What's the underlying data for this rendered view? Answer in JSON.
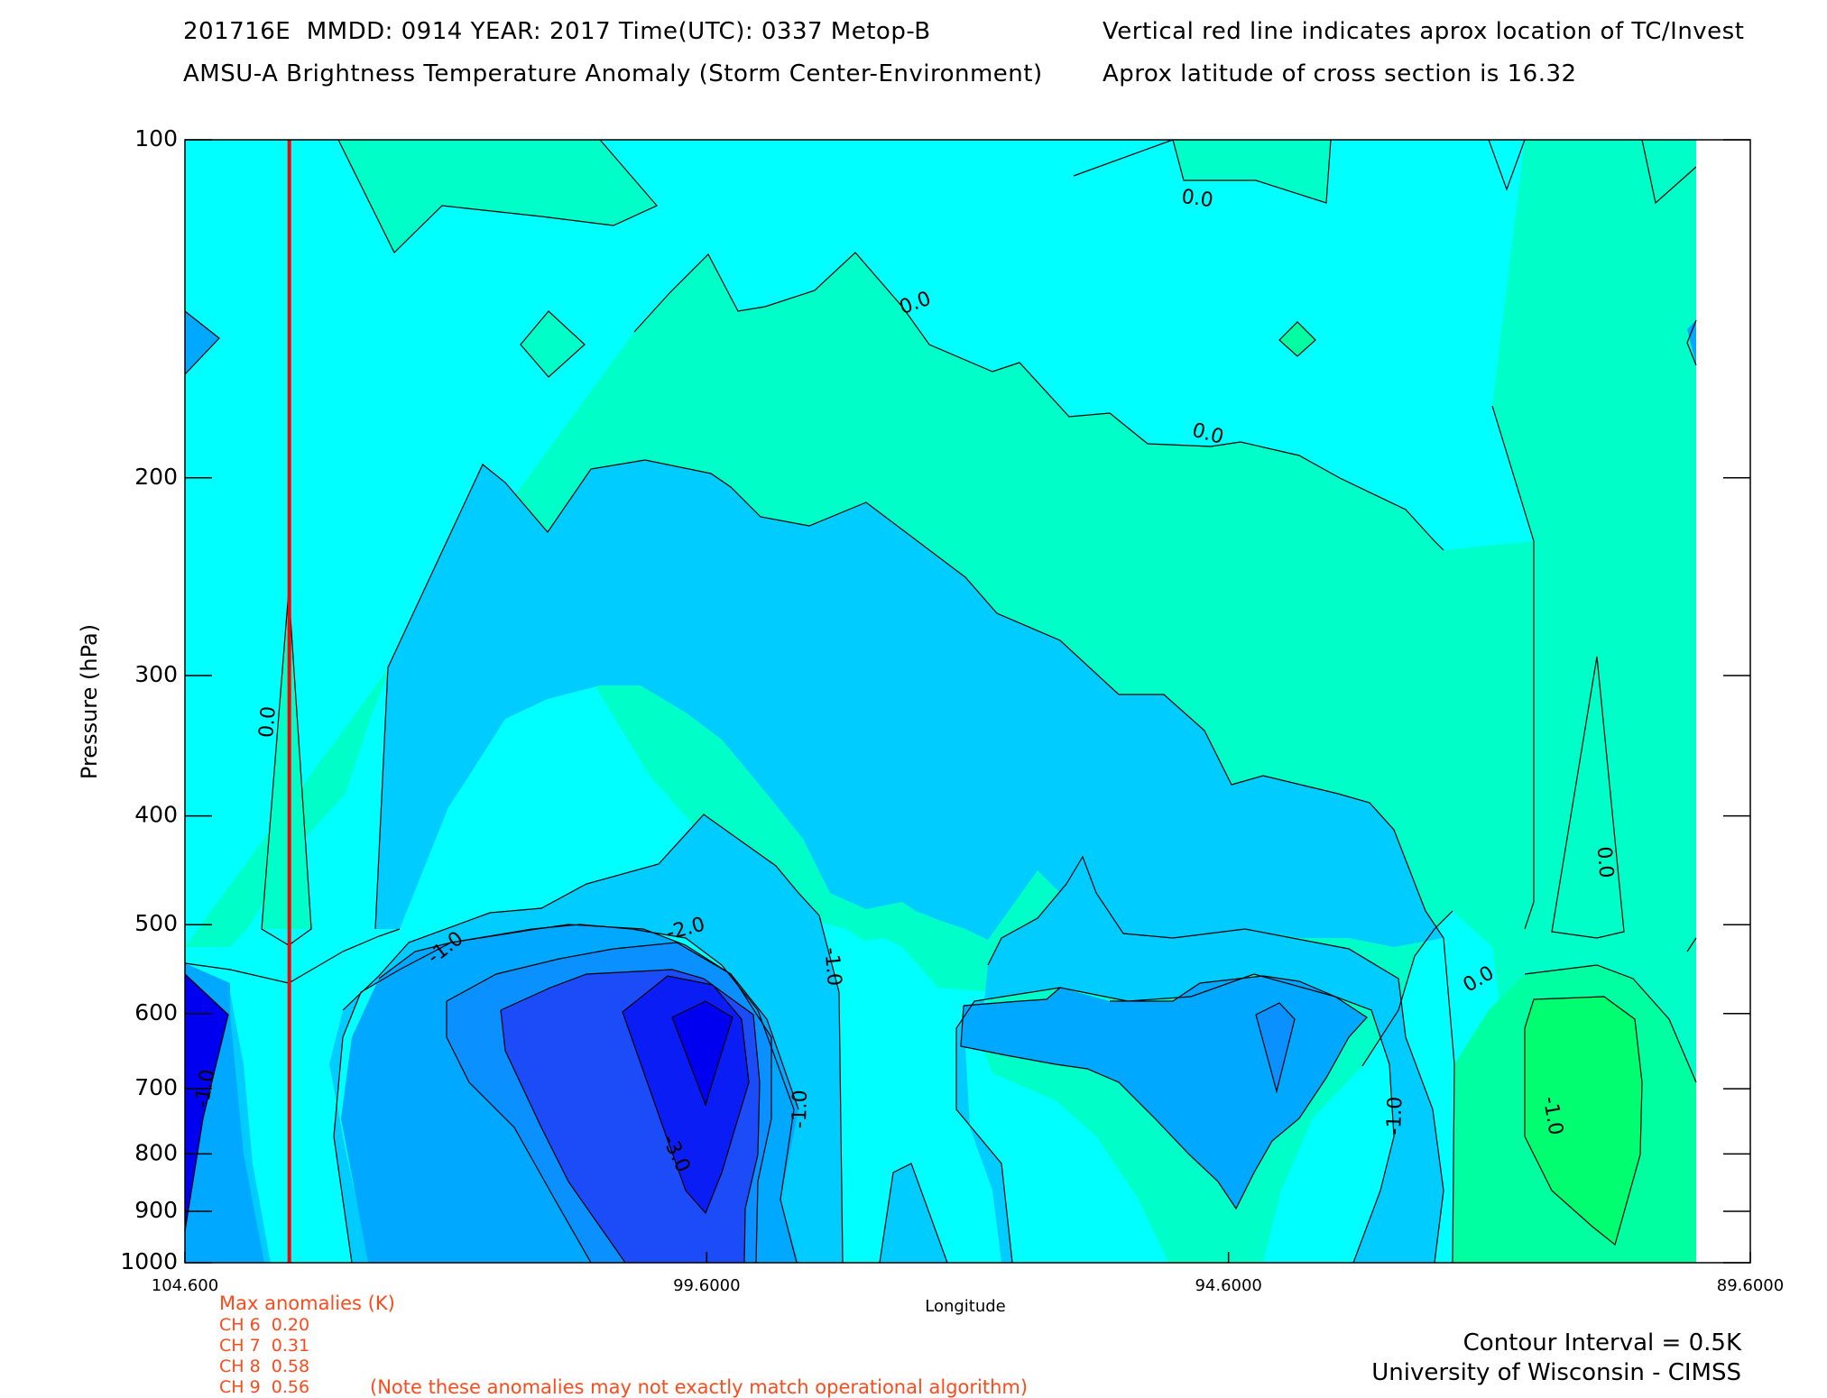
{
  "header": {
    "line1_left": "201716E  MMDD: 0914 YEAR: 2017 Time(UTC): 0337 Metop-B",
    "line1_right": "Vertical red line indicates aprox location of TC/Invest",
    "line2_left": "AMSU-A Brightness Temperature Anomaly (Storm Center-Environment)",
    "line2_right": "Aprox latitude of cross section is 16.32"
  },
  "footer": {
    "max_title": "Max anomalies (K)",
    "channels": [
      "CH 6  0.20",
      "CH 7  0.31",
      "CH 8  0.58",
      "CH 9  0.56"
    ],
    "note": "(Note these anomalies may not exactly match operational algorithm)",
    "contour_interval": "Contour Interval = 0.5K",
    "institution": "University of Wisconsin - CIMSS"
  },
  "colors": {
    "red_line": "#ff0000",
    "annotation": "#ff4a1c",
    "levels": {
      "-3.5": "#0000f0",
      "-3.0": "#0a1df5",
      "-2.5": "#1c4cf7",
      "-2.0": "#0a90ff",
      "-1.5": "#00a8ff",
      "-1.0": "#00ccff",
      "-0.5": "#00ffff",
      "0.0": "#00ffc8",
      "0.5": "#00ffa0",
      "1.0": "#00ff70"
    }
  },
  "chart_data": {
    "type": "heatmap",
    "xlabel": "Longitude",
    "ylabel": "Pressure (hPa)",
    "x_ticks": [
      "104.600",
      "99.6000",
      "94.6000",
      "89.6000"
    ],
    "x_tick_values": [
      104.6,
      99.6,
      94.6,
      89.6
    ],
    "xlim": [
      104.6,
      89.6
    ],
    "y_ticks": [
      "100",
      "200",
      "300",
      "400",
      "500",
      "600",
      "700",
      "800",
      "900",
      "1000"
    ],
    "y_tick_values": [
      100,
      200,
      300,
      400,
      500,
      600,
      700,
      800,
      900,
      1000
    ],
    "ylim": [
      100,
      1000
    ],
    "y_scale": "log",
    "storm_longitude": 103.6,
    "contour_labels": [
      {
        "text": "0.0",
        "lon": 94.9,
        "p": 113,
        "rotate": 8
      },
      {
        "text": "0.0",
        "lon": 97.6,
        "p": 140,
        "rotate": -20
      },
      {
        "text": "0.0",
        "lon": 94.8,
        "p": 183,
        "rotate": 15
      },
      {
        "text": "0.0",
        "lon": 103.8,
        "p": 330,
        "rotate": -85
      },
      {
        "text": "0.0",
        "lon": 91.0,
        "p": 440,
        "rotate": 85
      },
      {
        "text": "0.0",
        "lon": 92.2,
        "p": 560,
        "rotate": -30
      },
      {
        "text": "-1.0",
        "lon": 102.1,
        "p": 525,
        "rotate": -38
      },
      {
        "text": "-1.0",
        "lon": 98.4,
        "p": 545,
        "rotate": 85
      },
      {
        "text": "-1.0",
        "lon": 98.7,
        "p": 730,
        "rotate": -88
      },
      {
        "text": "-1.0",
        "lon": 93.0,
        "p": 740,
        "rotate": -88
      },
      {
        "text": "-1.0",
        "lon": 91.5,
        "p": 740,
        "rotate": 80
      },
      {
        "text": "-1.0",
        "lon": 104.4,
        "p": 700,
        "rotate": -80
      },
      {
        "text": "-2.0",
        "lon": 99.8,
        "p": 505,
        "rotate": -15
      },
      {
        "text": "-3.0",
        "lon": 99.9,
        "p": 800,
        "rotate": 65
      }
    ]
  }
}
